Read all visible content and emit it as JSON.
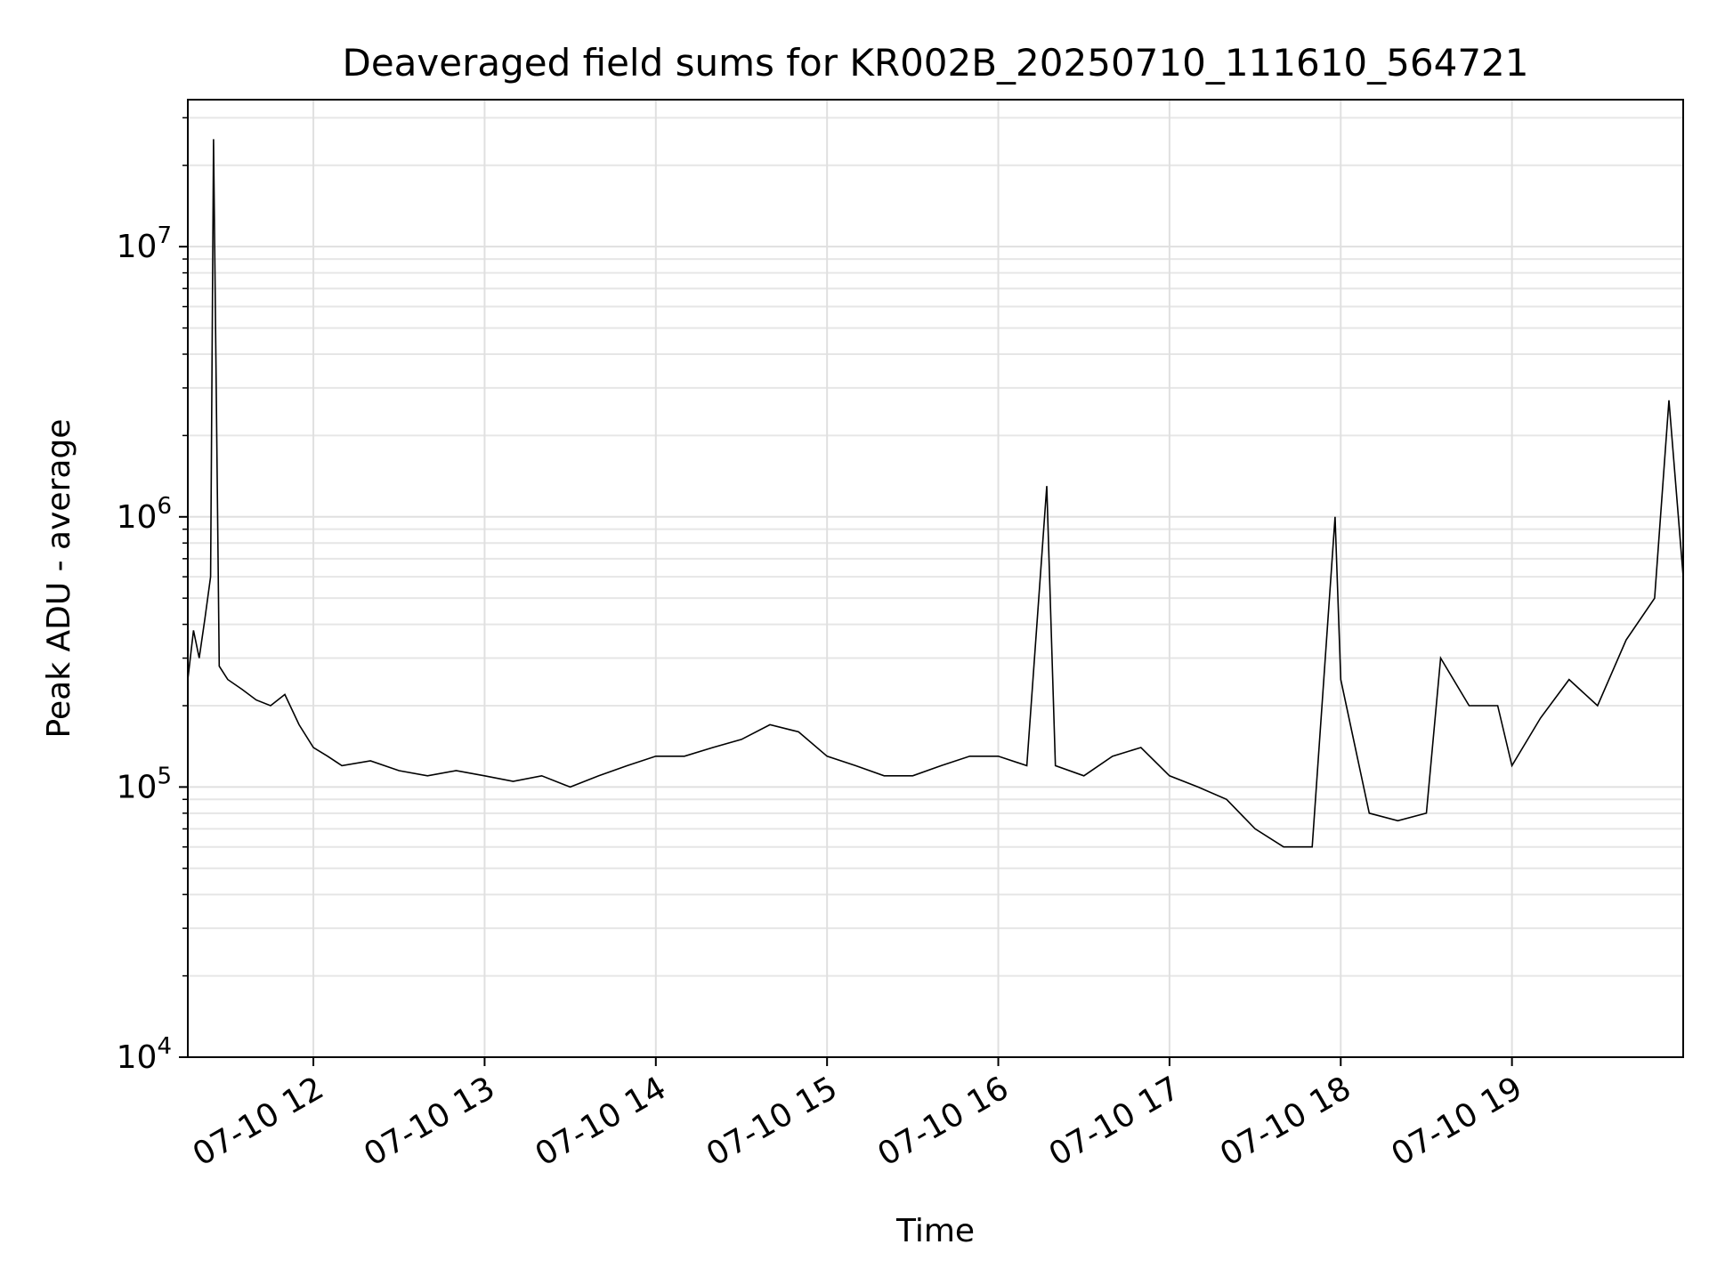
{
  "chart_data": {
    "type": "line",
    "title": "Deaveraged field sums for KR002B_20250710_111610_564721",
    "xlabel": "Time",
    "ylabel": "Peak ADU - average",
    "y_scale": "log",
    "xlim": [
      "2025-07-10 11:16",
      "2025-07-10 20:00"
    ],
    "ylim": [
      10000,
      35000000
    ],
    "grid": true,
    "line_color": "#000000",
    "x_ticks": [
      {
        "value": "2025-07-10 12:00",
        "label": "07-10 12"
      },
      {
        "value": "2025-07-10 13:00",
        "label": "07-10 13"
      },
      {
        "value": "2025-07-10 14:00",
        "label": "07-10 14"
      },
      {
        "value": "2025-07-10 15:00",
        "label": "07-10 15"
      },
      {
        "value": "2025-07-10 16:00",
        "label": "07-10 16"
      },
      {
        "value": "2025-07-10 17:00",
        "label": "07-10 17"
      },
      {
        "value": "2025-07-10 18:00",
        "label": "07-10 18"
      },
      {
        "value": "2025-07-10 19:00",
        "label": "07-10 19"
      }
    ],
    "y_ticks": [
      {
        "value": 10000,
        "base": "10",
        "exp": "4"
      },
      {
        "value": 100000,
        "base": "10",
        "exp": "5"
      },
      {
        "value": 1000000,
        "base": "10",
        "exp": "6"
      },
      {
        "value": 10000000,
        "base": "10",
        "exp": "7"
      }
    ],
    "series": [
      {
        "values": [
          [
            "2025-07-10 11:16",
            250000
          ],
          [
            "2025-07-10 11:18",
            380000
          ],
          [
            "2025-07-10 11:20",
            300000
          ],
          [
            "2025-07-10 11:22",
            420000
          ],
          [
            "2025-07-10 11:24",
            600000
          ],
          [
            "2025-07-10 11:25",
            25000000
          ],
          [
            "2025-07-10 11:27",
            280000
          ],
          [
            "2025-07-10 11:30",
            250000
          ],
          [
            "2025-07-10 11:35",
            230000
          ],
          [
            "2025-07-10 11:40",
            210000
          ],
          [
            "2025-07-10 11:45",
            200000
          ],
          [
            "2025-07-10 11:50",
            220000
          ],
          [
            "2025-07-10 11:55",
            170000
          ],
          [
            "2025-07-10 12:00",
            140000
          ],
          [
            "2025-07-10 12:05",
            130000
          ],
          [
            "2025-07-10 12:10",
            120000
          ],
          [
            "2025-07-10 12:20",
            125000
          ],
          [
            "2025-07-10 12:30",
            115000
          ],
          [
            "2025-07-10 12:40",
            110000
          ],
          [
            "2025-07-10 12:50",
            115000
          ],
          [
            "2025-07-10 13:00",
            110000
          ],
          [
            "2025-07-10 13:10",
            105000
          ],
          [
            "2025-07-10 13:20",
            110000
          ],
          [
            "2025-07-10 13:30",
            100000
          ],
          [
            "2025-07-10 13:40",
            110000
          ],
          [
            "2025-07-10 13:50",
            120000
          ],
          [
            "2025-07-10 14:00",
            130000
          ],
          [
            "2025-07-10 14:10",
            130000
          ],
          [
            "2025-07-10 14:20",
            140000
          ],
          [
            "2025-07-10 14:30",
            150000
          ],
          [
            "2025-07-10 14:40",
            170000
          ],
          [
            "2025-07-10 14:50",
            160000
          ],
          [
            "2025-07-10 15:00",
            130000
          ],
          [
            "2025-07-10 15:10",
            120000
          ],
          [
            "2025-07-10 15:20",
            110000
          ],
          [
            "2025-07-10 15:30",
            110000
          ],
          [
            "2025-07-10 15:40",
            120000
          ],
          [
            "2025-07-10 15:50",
            130000
          ],
          [
            "2025-07-10 16:00",
            130000
          ],
          [
            "2025-07-10 16:10",
            120000
          ],
          [
            "2025-07-10 16:17",
            1300000
          ],
          [
            "2025-07-10 16:20",
            120000
          ],
          [
            "2025-07-10 16:30",
            110000
          ],
          [
            "2025-07-10 16:40",
            130000
          ],
          [
            "2025-07-10 16:50",
            140000
          ],
          [
            "2025-07-10 17:00",
            110000
          ],
          [
            "2025-07-10 17:10",
            100000
          ],
          [
            "2025-07-10 17:20",
            90000
          ],
          [
            "2025-07-10 17:30",
            70000
          ],
          [
            "2025-07-10 17:40",
            60000
          ],
          [
            "2025-07-10 17:50",
            60000
          ],
          [
            "2025-07-10 17:58",
            1000000
          ],
          [
            "2025-07-10 18:00",
            250000
          ],
          [
            "2025-07-10 18:10",
            80000
          ],
          [
            "2025-07-10 18:20",
            75000
          ],
          [
            "2025-07-10 18:30",
            80000
          ],
          [
            "2025-07-10 18:35",
            300000
          ],
          [
            "2025-07-10 18:45",
            200000
          ],
          [
            "2025-07-10 18:55",
            200000
          ],
          [
            "2025-07-10 19:00",
            120000
          ],
          [
            "2025-07-10 19:10",
            180000
          ],
          [
            "2025-07-10 19:20",
            250000
          ],
          [
            "2025-07-10 19:30",
            200000
          ],
          [
            "2025-07-10 19:40",
            350000
          ],
          [
            "2025-07-10 19:50",
            500000
          ],
          [
            "2025-07-10 19:55",
            2700000
          ],
          [
            "2025-07-10 20:00",
            600000
          ]
        ]
      }
    ]
  }
}
